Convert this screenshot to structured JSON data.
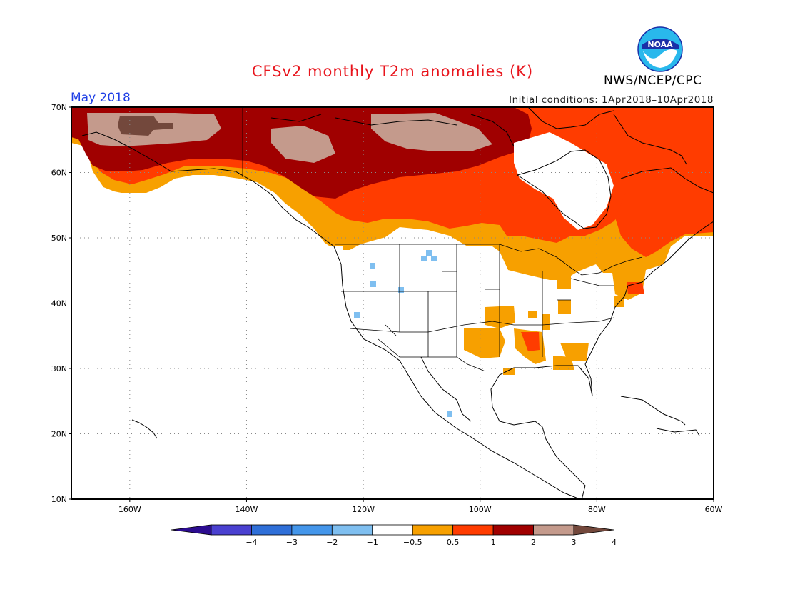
{
  "header": {
    "title": "CFSv2 monthly T2m anomalies (K)",
    "valid_month": "May 2018",
    "init_conditions": "Initial conditions: 1Apr2018–10Apr2018",
    "agency": "NWS/NCEP/CPC",
    "logo_text": "NOAA"
  },
  "map": {
    "lat_range": [
      10,
      70
    ],
    "lon_range": [
      -170,
      -60
    ],
    "y_ticks": [
      {
        "lat": 70,
        "label": "70N"
      },
      {
        "lat": 60,
        "label": "60N"
      },
      {
        "lat": 50,
        "label": "50N"
      },
      {
        "lat": 40,
        "label": "40N"
      },
      {
        "lat": 30,
        "label": "30N"
      },
      {
        "lat": 20,
        "label": "20N"
      },
      {
        "lat": 10,
        "label": "10N"
      }
    ],
    "x_ticks": [
      {
        "lon": -160,
        "label": "160W"
      },
      {
        "lon": -140,
        "label": "140W"
      },
      {
        "lon": -120,
        "label": "120W"
      },
      {
        "lon": -100,
        "label": "100W"
      },
      {
        "lon": -80,
        "label": "80W"
      },
      {
        "lon": -60,
        "label": "60W"
      }
    ],
    "gridlines": "dotted"
  },
  "colorbar": {
    "labels": [
      "−4",
      "−3",
      "−2",
      "−1",
      "−0.5",
      "0.5",
      "1",
      "2",
      "3",
      "4"
    ],
    "colors": [
      "#2c0c90",
      "#4a40d0",
      "#2f6fd8",
      "#4496ea",
      "#7fbff0",
      "#ffffff",
      "#f7a000",
      "#ff3c00",
      "#a00000",
      "#c49a8c",
      "#73483c"
    ]
  }
}
